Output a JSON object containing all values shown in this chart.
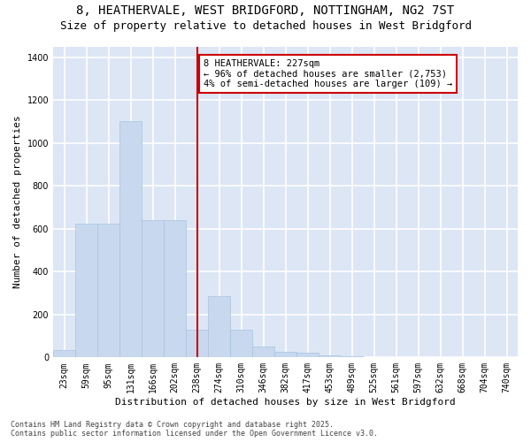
{
  "title_line1": "8, HEATHERVALE, WEST BRIDGFORD, NOTTINGHAM, NG2 7ST",
  "title_line2": "Size of property relative to detached houses in West Bridgford",
  "xlabel": "Distribution of detached houses by size in West Bridgford",
  "ylabel": "Number of detached properties",
  "bar_labels": [
    "23sqm",
    "59sqm",
    "95sqm",
    "131sqm",
    "166sqm",
    "202sqm",
    "238sqm",
    "274sqm",
    "310sqm",
    "346sqm",
    "382sqm",
    "417sqm",
    "453sqm",
    "489sqm",
    "525sqm",
    "561sqm",
    "597sqm",
    "632sqm",
    "668sqm",
    "704sqm",
    "740sqm"
  ],
  "bar_values": [
    35,
    625,
    625,
    1100,
    640,
    640,
    130,
    285,
    130,
    50,
    25,
    20,
    10,
    5,
    0,
    0,
    0,
    0,
    0,
    0,
    0
  ],
  "bar_color": "#c8d8ee",
  "bar_edge_color": "#aac4e0",
  "vline_x_index": 6,
  "vline_color": "#cc0000",
  "annotation_text": "8 HEATHERVALE: 227sqm\n← 96% of detached houses are smaller (2,753)\n4% of semi-detached houses are larger (109) →",
  "annotation_box_color": "#cc0000",
  "ylim": [
    0,
    1450
  ],
  "yticks": [
    0,
    200,
    400,
    600,
    800,
    1000,
    1200,
    1400
  ],
  "background_color": "#dce6f5",
  "grid_color": "#ffffff",
  "fig_bg_color": "#ffffff",
  "footer_line1": "Contains HM Land Registry data © Crown copyright and database right 2025.",
  "footer_line2": "Contains public sector information licensed under the Open Government Licence v3.0.",
  "title_fontsize": 10,
  "subtitle_fontsize": 9,
  "axis_label_fontsize": 8,
  "tick_fontsize": 7,
  "annotation_fontsize": 7.5,
  "footer_fontsize": 6
}
